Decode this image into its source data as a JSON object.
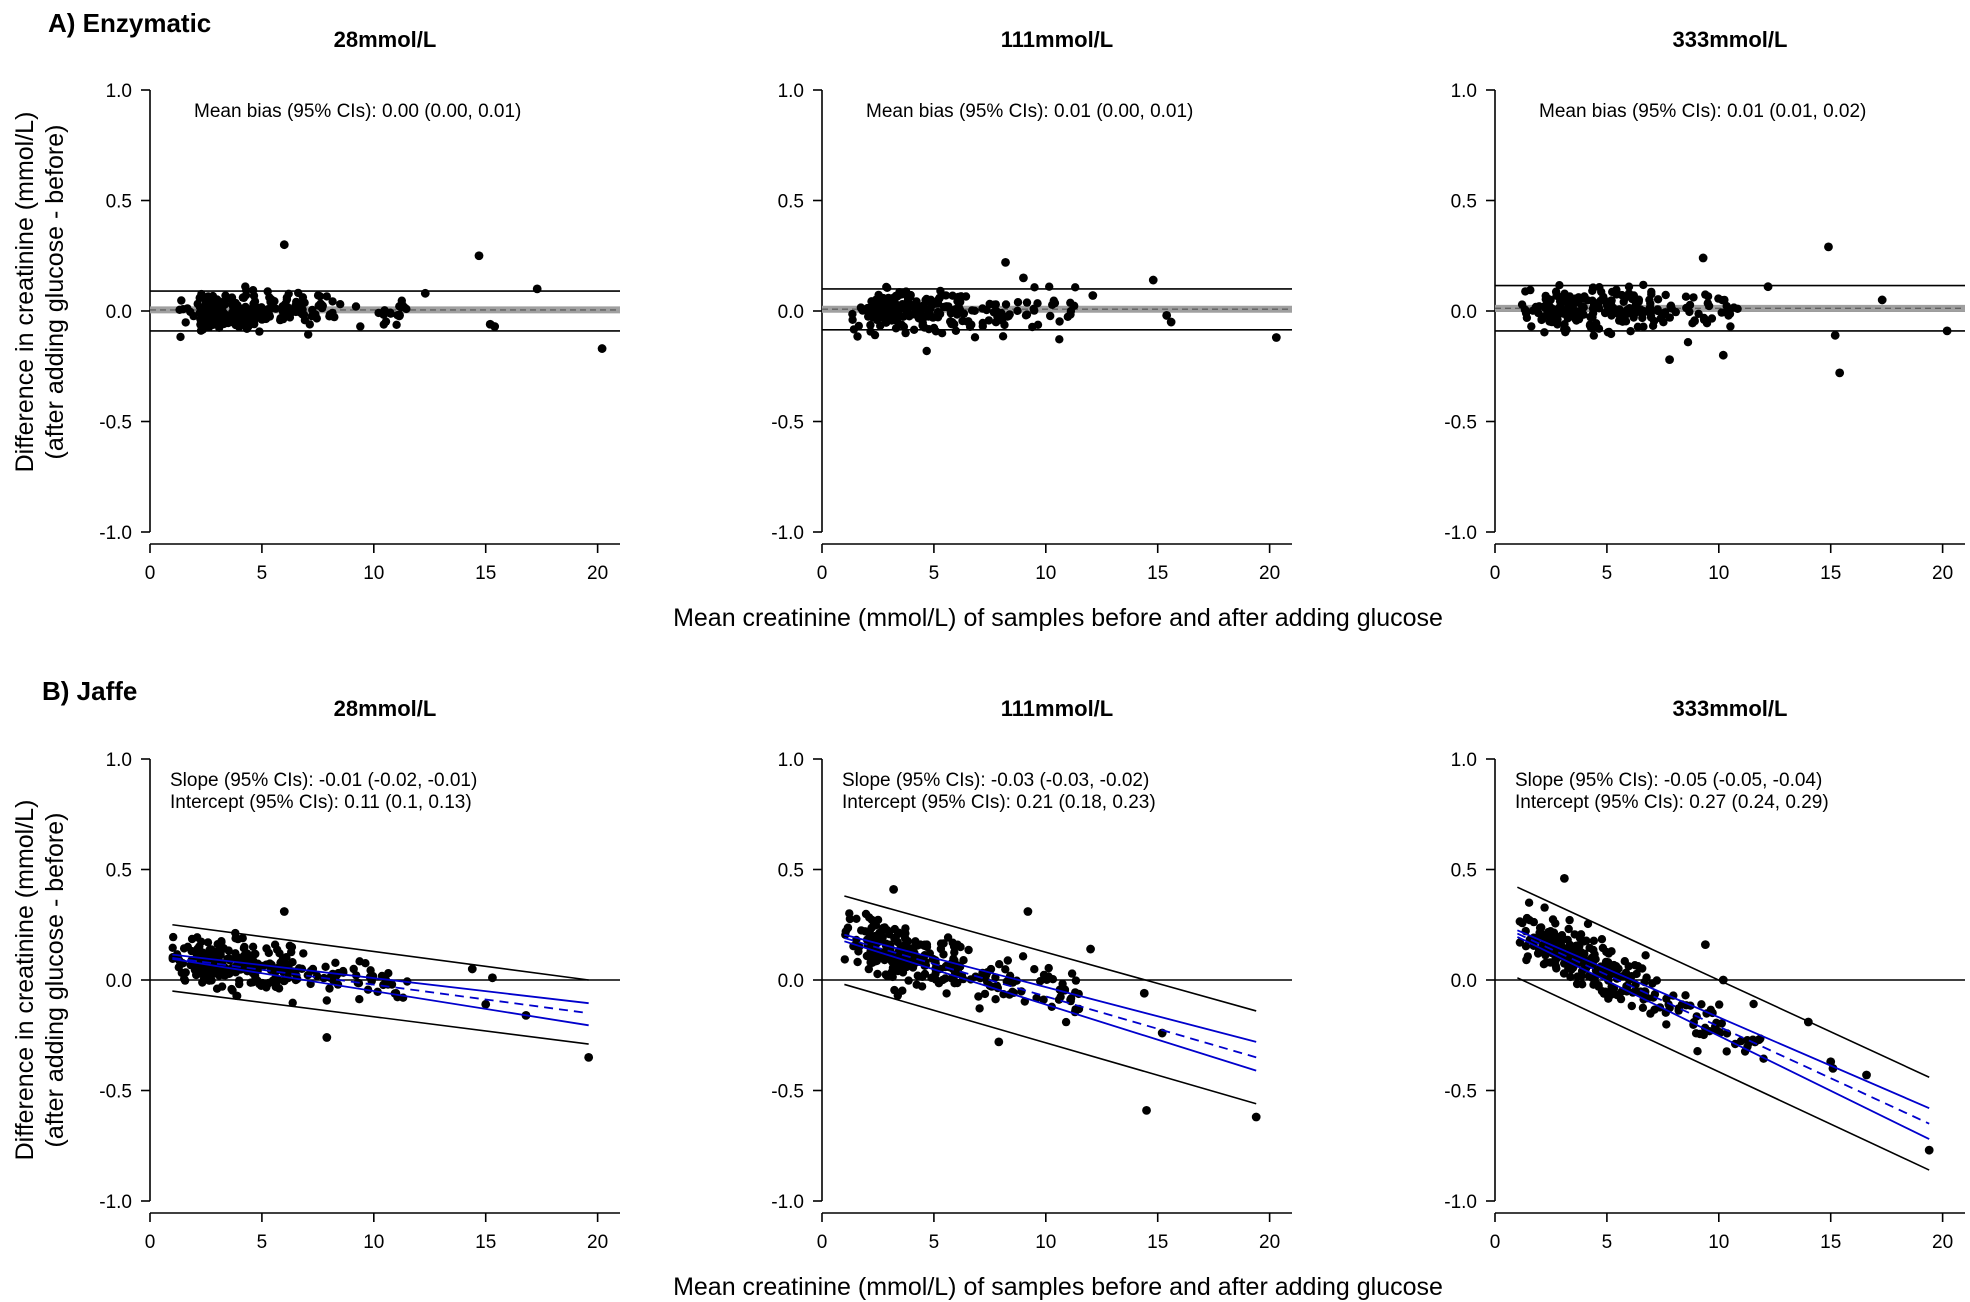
{
  "figure": {
    "y_axis_label_line1": "Difference in creatinine (mmol/L)",
    "y_axis_label_line2": "(after adding glucose - before)",
    "x_axis_label": "Mean creatinine (mmol/L) of samples before and after adding glucose",
    "sections": [
      {
        "label": "A) Enzymatic"
      },
      {
        "label": "B) Jaffe"
      }
    ]
  },
  "colors": {
    "points": "#000000",
    "limits_of_agreement": "#000000",
    "mean_bias": "#a0a0a0",
    "regression": "#0000cc"
  },
  "chart_data": [
    {
      "type": "scatter",
      "section": "A) Enzymatic",
      "title": "28mmol/L",
      "xlim": [
        0,
        21
      ],
      "ylim": [
        -1.0,
        1.0
      ],
      "xticks": [
        "0",
        "5",
        "10",
        "15",
        "20"
      ],
      "yticks": [
        "-1.0",
        "-0.5",
        "0.0",
        "0.5",
        "1.0"
      ],
      "annotations": [
        "Mean bias (95% CIs): 0.00 (0.00, 0.01)"
      ],
      "mean_bias": 0.005,
      "upper_limit": 0.09,
      "lower_limit": -0.09,
      "outliers": [
        [
          6.0,
          0.3
        ],
        [
          14.7,
          0.25
        ],
        [
          17.3,
          0.1
        ],
        [
          15.4,
          -0.07
        ],
        [
          15.2,
          -0.06
        ],
        [
          20.2,
          -0.17
        ],
        [
          12.3,
          0.08
        ]
      ],
      "cluster": {
        "n": 230,
        "x_range": [
          1.2,
          11.5
        ],
        "intercept": 0.0,
        "slope": 0.0,
        "spread": 0.09
      }
    },
    {
      "type": "scatter",
      "section": "A) Enzymatic",
      "title": "111mmol/L",
      "xlim": [
        0,
        21
      ],
      "ylim": [
        -1.0,
        1.0
      ],
      "xticks": [
        "0",
        "5",
        "10",
        "15",
        "20"
      ],
      "yticks": [
        "-1.0",
        "-0.5",
        "0.0",
        "0.5",
        "1.0"
      ],
      "annotations": [
        "Mean bias (95% CIs): 0.01 (0.00, 0.01)"
      ],
      "mean_bias": 0.008,
      "upper_limit": 0.1,
      "lower_limit": -0.085,
      "outliers": [
        [
          8.2,
          0.22
        ],
        [
          14.8,
          0.14
        ],
        [
          15.6,
          -0.05
        ],
        [
          15.4,
          -0.02
        ],
        [
          20.3,
          -0.12
        ],
        [
          12.1,
          0.07
        ],
        [
          9.0,
          0.15
        ]
      ],
      "cluster": {
        "n": 230,
        "x_range": [
          1.2,
          11.5
        ],
        "intercept": 0.0,
        "slope": 0.0,
        "spread": 0.1
      }
    },
    {
      "type": "scatter",
      "section": "A) Enzymatic",
      "title": "333mmol/L",
      "xlim": [
        0,
        21
      ],
      "ylim": [
        -1.0,
        1.0
      ],
      "xticks": [
        "0",
        "5",
        "10",
        "15",
        "20"
      ],
      "yticks": [
        "-1.0",
        "-0.5",
        "0.0",
        "0.5",
        "1.0"
      ],
      "annotations": [
        "Mean bias (95% CIs): 0.01 (0.01, 0.02)"
      ],
      "mean_bias": 0.012,
      "upper_limit": 0.115,
      "lower_limit": -0.09,
      "outliers": [
        [
          9.3,
          0.24
        ],
        [
          14.9,
          0.29
        ],
        [
          17.3,
          0.05
        ],
        [
          15.2,
          -0.11
        ],
        [
          15.4,
          -0.28
        ],
        [
          20.2,
          -0.09
        ],
        [
          7.8,
          -0.22
        ],
        [
          10.2,
          -0.2
        ],
        [
          12.2,
          0.11
        ]
      ],
      "cluster": {
        "n": 230,
        "x_range": [
          1.2,
          11.0
        ],
        "intercept": 0.0,
        "slope": 0.0,
        "spread": 0.11
      }
    },
    {
      "type": "scatter",
      "section": "B) Jaffe",
      "title": "28mmol/L",
      "xlim": [
        0,
        21
      ],
      "ylim": [
        -1.0,
        1.0
      ],
      "xticks": [
        "0",
        "5",
        "10",
        "15",
        "20"
      ],
      "yticks": [
        "-1.0",
        "-0.5",
        "0.0",
        "0.5",
        "1.0"
      ],
      "annotations": [
        "Slope (95% CIs): -0.01 (-0.02, -0.01)",
        "Intercept (95% CIs): 0.11 (0.1, 0.13)"
      ],
      "upper_limit_line": [
        [
          1.0,
          0.25
        ],
        [
          19.6,
          0.0
        ]
      ],
      "lower_limit_line": [
        [
          1.0,
          -0.05
        ],
        [
          19.6,
          -0.29
        ]
      ],
      "fit_line": [
        [
          1.0,
          0.1
        ],
        [
          19.6,
          -0.15
        ]
      ],
      "ci_upper_line": [
        [
          1.0,
          0.115
        ],
        [
          19.6,
          -0.105
        ]
      ],
      "ci_lower_line": [
        [
          1.0,
          0.095
        ],
        [
          19.6,
          -0.205
        ]
      ],
      "outliers": [
        [
          6.0,
          0.31
        ],
        [
          19.6,
          -0.35
        ],
        [
          16.8,
          -0.16
        ],
        [
          15.0,
          -0.11
        ],
        [
          14.4,
          0.05
        ],
        [
          7.9,
          -0.26
        ],
        [
          15.3,
          0.01
        ]
      ],
      "cluster": {
        "n": 260,
        "x_range": [
          1.0,
          11.5
        ],
        "intercept": 0.12,
        "slope": -0.013,
        "spread": 0.12
      }
    },
    {
      "type": "scatter",
      "section": "B) Jaffe",
      "title": "111mmol/L",
      "xlim": [
        0,
        21
      ],
      "ylim": [
        -1.0,
        1.0
      ],
      "xticks": [
        "0",
        "5",
        "10",
        "15",
        "20"
      ],
      "yticks": [
        "-1.0",
        "-0.5",
        "0.0",
        "0.5",
        "1.0"
      ],
      "annotations": [
        "Slope (95% CIs): -0.03 (-0.03, -0.02)",
        "Intercept (95% CIs): 0.21 (0.18, 0.23)"
      ],
      "upper_limit_line": [
        [
          1.0,
          0.38
        ],
        [
          19.4,
          -0.14
        ]
      ],
      "lower_limit_line": [
        [
          1.0,
          -0.02
        ],
        [
          19.4,
          -0.56
        ]
      ],
      "fit_line": [
        [
          1.0,
          0.19
        ],
        [
          19.4,
          -0.35
        ]
      ],
      "ci_upper_line": [
        [
          1.0,
          0.205
        ],
        [
          19.4,
          -0.28
        ]
      ],
      "ci_lower_line": [
        [
          1.0,
          0.175
        ],
        [
          19.4,
          -0.41
        ]
      ],
      "outliers": [
        [
          14.5,
          -0.59
        ],
        [
          19.4,
          -0.62
        ],
        [
          15.2,
          -0.24
        ],
        [
          14.4,
          -0.06
        ],
        [
          7.9,
          -0.28
        ],
        [
          12.0,
          0.14
        ],
        [
          3.2,
          0.41
        ],
        [
          9.2,
          0.31
        ]
      ],
      "cluster": {
        "n": 270,
        "x_range": [
          1.0,
          11.5
        ],
        "intercept": 0.21,
        "slope": -0.027,
        "spread": 0.14
      }
    },
    {
      "type": "scatter",
      "section": "B) Jaffe",
      "title": "333mmol/L",
      "xlim": [
        0,
        21
      ],
      "ylim": [
        -1.0,
        1.0
      ],
      "xticks": [
        "0",
        "5",
        "10",
        "15",
        "20"
      ],
      "yticks": [
        "-1.0",
        "-0.5",
        "0.0",
        "0.5",
        "1.0"
      ],
      "annotations": [
        "Slope (95% CIs): -0.05 (-0.05, -0.04)",
        "Intercept (95% CIs): 0.27 (0.24, 0.29)"
      ],
      "upper_limit_line": [
        [
          1.0,
          0.42
        ],
        [
          19.4,
          -0.44
        ]
      ],
      "lower_limit_line": [
        [
          1.0,
          0.01
        ],
        [
          19.4,
          -0.86
        ]
      ],
      "fit_line": [
        [
          1.0,
          0.21
        ],
        [
          19.4,
          -0.65
        ]
      ],
      "ci_upper_line": [
        [
          1.0,
          0.225
        ],
        [
          19.4,
          -0.58
        ]
      ],
      "ci_lower_line": [
        [
          1.0,
          0.195
        ],
        [
          19.4,
          -0.72
        ]
      ],
      "outliers": [
        [
          19.4,
          -0.77
        ],
        [
          16.6,
          -0.43
        ],
        [
          15.0,
          -0.37
        ],
        [
          14.0,
          -0.19
        ],
        [
          9.4,
          0.16
        ],
        [
          10.2,
          0.0
        ],
        [
          11.8,
          -0.27
        ],
        [
          3.1,
          0.46
        ],
        [
          15.1,
          -0.4
        ]
      ],
      "cluster": {
        "n": 280,
        "x_range": [
          1.0,
          12.0
        ],
        "intercept": 0.27,
        "slope": -0.047,
        "spread": 0.14
      }
    }
  ]
}
